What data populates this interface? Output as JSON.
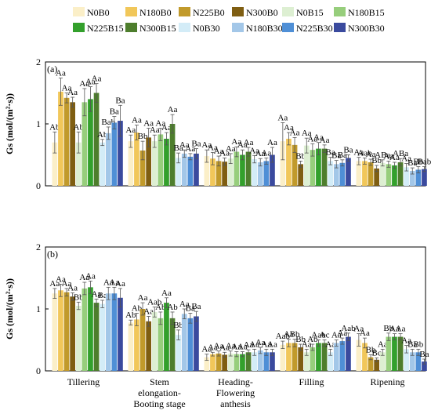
{
  "legend": [
    {
      "name": "N0B0",
      "color": "#FBEFC8"
    },
    {
      "name": "N180B0",
      "color": "#F1C75A"
    },
    {
      "name": "N225B0",
      "color": "#C19A2B"
    },
    {
      "name": "N300B0",
      "color": "#7F5E12"
    },
    {
      "name": "N0B15",
      "color": "#DDEFD2"
    },
    {
      "name": "N180B15",
      "color": "#97CE7C"
    },
    {
      "name": "N225B15",
      "color": "#33A02C"
    },
    {
      "name": "N300B15",
      "color": "#4E7E2D"
    },
    {
      "name": "N0B30",
      "color": "#D3ECF7"
    },
    {
      "name": "N180B30",
      "color": "#A3C7E8"
    },
    {
      "name": "N225B30",
      "color": "#4F8FD6"
    },
    {
      "name": "N300B30",
      "color": "#3A4A9E"
    }
  ],
  "chart_data": [
    {
      "type": "bar",
      "panel_label": "(a)",
      "ylabel": "Gs (mol/(m²·s))",
      "ylim": [
        0,
        2
      ],
      "yticks": [
        "0",
        "1",
        "2"
      ],
      "categories": [
        "Tillering",
        "Stem elongation-Booting stage",
        "Heading-Flowering anthesis",
        "Filling",
        "Ripening"
      ],
      "series": [
        {
          "name": "N0B0",
          "values": [
            0.7,
            0.72,
            0.48,
            0.72,
            0.4
          ],
          "errors": [
            0.17,
            0.1,
            0.1,
            0.3,
            0.06
          ],
          "labels": [
            "Ab",
            "Aa",
            "Aa",
            "Aa",
            "Aa"
          ]
        },
        {
          "name": "N180B0",
          "values": [
            1.52,
            0.86,
            0.44,
            0.76,
            0.4
          ],
          "errors": [
            0.22,
            0.12,
            0.1,
            0.1,
            0.05
          ],
          "labels": [
            "Aa",
            "Aa",
            "Aa",
            "Aa",
            "Aab"
          ]
        },
        {
          "name": "N225B0",
          "values": [
            1.42,
            0.57,
            0.4,
            0.66,
            0.38
          ],
          "errors": [
            0.08,
            0.15,
            0.08,
            0.12,
            0.05
          ],
          "labels": [
            "Aa",
            "Bb",
            "Aa",
            "Aa",
            "Aa"
          ]
        },
        {
          "name": "N300B0",
          "values": [
            1.35,
            0.78,
            0.39,
            0.35,
            0.28
          ],
          "errors": [
            0.08,
            0.15,
            0.06,
            0.05,
            0.05
          ],
          "labels": [
            "Aa",
            "Aa",
            "Aa",
            "Bb",
            "Bb"
          ]
        },
        {
          "name": "N0B15",
          "values": [
            0.7,
            0.72,
            0.44,
            0.65,
            0.37
          ],
          "errors": [
            0.17,
            0.1,
            0.08,
            0.12,
            0.05
          ],
          "labels": [
            "Ab",
            "Aa",
            "Aa",
            "Aa",
            "ABa"
          ]
        },
        {
          "name": "N180B15",
          "values": [
            1.35,
            0.83,
            0.55,
            0.58,
            0.35
          ],
          "errors": [
            0.22,
            0.1,
            0.08,
            0.1,
            0.05
          ],
          "labels": [
            "Aa",
            "Aa",
            "Aa",
            "Aa",
            "Aa"
          ]
        },
        {
          "name": "N225B15",
          "values": [
            1.4,
            0.76,
            0.5,
            0.6,
            0.33
          ],
          "errors": [
            0.2,
            0.1,
            0.08,
            0.1,
            0.05
          ],
          "labels": [
            "Aa",
            "Aa",
            "Aa",
            "Aa",
            "Aa"
          ]
        },
        {
          "name": "N300B15",
          "values": [
            1.5,
            1.0,
            0.55,
            0.6,
            0.38
          ],
          "errors": [
            0.15,
            0.15,
            0.07,
            0.06,
            0.06
          ],
          "labels": [
            "Aa",
            "Aa",
            "Aa",
            "Aa",
            "ABa"
          ]
        },
        {
          "name": "N0B30",
          "values": [
            0.7,
            0.45,
            0.43,
            0.4,
            0.3
          ],
          "errors": [
            0.05,
            0.08,
            0.06,
            0.06,
            0.06
          ],
          "labels": [
            "Ab",
            "Ba",
            "Aa",
            "Ba",
            "Aa"
          ]
        },
        {
          "name": "N180B30",
          "values": [
            0.85,
            0.52,
            0.38,
            0.35,
            0.24
          ],
          "errors": [
            0.1,
            0.06,
            0.06,
            0.06,
            0.05
          ],
          "labels": [
            "Bab",
            "Aa",
            "Aa",
            "Ba",
            "Ba"
          ]
        },
        {
          "name": "N225B30",
          "values": [
            1.02,
            0.47,
            0.4,
            0.37,
            0.26
          ],
          "errors": [
            0.1,
            0.05,
            0.05,
            0.05,
            0.05
          ],
          "labels": [
            "Ba",
            "Aa",
            "Aa",
            "Ba",
            "Bb"
          ]
        },
        {
          "name": "N300B30",
          "values": [
            1.05,
            0.52,
            0.5,
            0.45,
            0.27
          ],
          "errors": [
            0.25,
            0.08,
            0.12,
            0.05,
            0.04
          ],
          "labels": [
            "Ba",
            "Ba",
            "Aa",
            "Ba",
            "Bab"
          ]
        }
      ]
    },
    {
      "type": "bar",
      "panel_label": "(b)",
      "ylabel": "Gs (mol/(m²·s))",
      "ylim": [
        0,
        2
      ],
      "yticks": [
        "0",
        "1",
        "2"
      ],
      "categories": [
        "Tillering",
        "Stem elongation-Booting stage",
        "Heading-Flowering anthesis",
        "Filling",
        "Ripening"
      ],
      "series": [
        {
          "name": "N0B0",
          "values": [
            1.25,
            0.78,
            0.22,
            0.42,
            0.5
          ],
          "errors": [
            0.08,
            0.04,
            0.05,
            0.06,
            0.1
          ],
          "labels": [
            "Aa",
            "Ab",
            "Aa",
            "Aab",
            "Aa"
          ]
        },
        {
          "name": "N180B0",
          "values": [
            1.3,
            0.83,
            0.27,
            0.45,
            0.45
          ],
          "errors": [
            0.1,
            0.1,
            0.03,
            0.06,
            0.08
          ],
          "labels": [
            "Aa",
            "Ab",
            "Aa",
            "Aa",
            "Aa"
          ]
        },
        {
          "name": "N225B0",
          "values": [
            1.27,
            1.0,
            0.28,
            0.45,
            0.22
          ],
          "errors": [
            0.06,
            0.1,
            0.04,
            0.06,
            0.04
          ],
          "labels": [
            "Aa",
            "Aa",
            "Aa",
            "Bb",
            "Bb"
          ]
        },
        {
          "name": "N300B0",
          "values": [
            1.2,
            0.8,
            0.26,
            0.38,
            0.18
          ],
          "errors": [
            0.06,
            0.08,
            0.04,
            0.05,
            0.03
          ],
          "labels": [
            "Aa",
            "Aa",
            "Aa",
            "Bb",
            "Bc"
          ]
        },
        {
          "name": "N0B15",
          "values": [
            1.05,
            0.95,
            0.28,
            0.3,
            0.3
          ],
          "errors": [
            0.06,
            0.08,
            0.04,
            0.05,
            0.05
          ],
          "labels": [
            "Bb",
            "Aab",
            "Aa",
            "Aa",
            "Aa"
          ]
        },
        {
          "name": "N180B15",
          "values": [
            1.33,
            0.85,
            0.27,
            0.38,
            0.55
          ],
          "errors": [
            0.1,
            0.1,
            0.04,
            0.05,
            0.06
          ],
          "labels": [
            "Aa",
            "Ab",
            "Aa",
            "Ab",
            "Bb"
          ]
        },
        {
          "name": "N225B15",
          "values": [
            1.35,
            1.1,
            0.27,
            0.45,
            0.55
          ],
          "errors": [
            0.1,
            0.08,
            0.04,
            0.05,
            0.05
          ],
          "labels": [
            "Aa",
            "Aa",
            "Aa",
            "Aab",
            "Aa"
          ]
        },
        {
          "name": "N300B15",
          "values": [
            1.1,
            0.85,
            0.3,
            0.45,
            0.55
          ],
          "errors": [
            0.06,
            0.1,
            0.04,
            0.05,
            0.05
          ],
          "labels": [
            "Aa",
            "Ab",
            "Aa",
            "Ac",
            "Aa"
          ]
        },
        {
          "name": "N0B30",
          "values": [
            1.08,
            0.58,
            0.3,
            0.3,
            0.35
          ],
          "errors": [
            0.06,
            0.08,
            0.05,
            0.05,
            0.06
          ],
          "labels": [
            "Ba",
            "Bb",
            "Aa",
            "Aa",
            "Aa"
          ]
        },
        {
          "name": "N180B30",
          "values": [
            1.25,
            0.92,
            0.33,
            0.45,
            0.3
          ],
          "errors": [
            0.1,
            0.08,
            0.05,
            0.05,
            0.05
          ],
          "labels": [
            "Aa",
            "Aa",
            "Aa",
            "Aa",
            "Ba"
          ]
        },
        {
          "name": "N225B30",
          "values": [
            1.25,
            0.85,
            0.3,
            0.48,
            0.3
          ],
          "errors": [
            0.1,
            0.08,
            0.05,
            0.05,
            0.05
          ],
          "labels": [
            "Aa",
            "Ba",
            "Aa",
            "Aa",
            "Bb"
          ]
        },
        {
          "name": "N300B30",
          "values": [
            1.18,
            0.88,
            0.3,
            0.55,
            0.15
          ],
          "errors": [
            0.15,
            0.08,
            0.05,
            0.06,
            0.04
          ],
          "labels": [
            "Aa",
            "Ba",
            "Aa",
            "Aab",
            "Ba"
          ]
        }
      ]
    }
  ]
}
